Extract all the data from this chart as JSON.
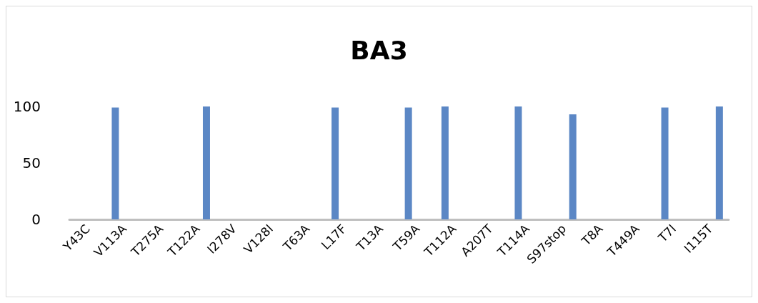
{
  "chart_data": {
    "type": "bar",
    "title": "BA3",
    "categories": [
      "Y43C",
      "V113A",
      "T275A",
      "T122A",
      "I278V",
      "V128I",
      "T63A",
      "L17F",
      "T13A",
      "T59A",
      "T112A",
      "A207T",
      "T114A",
      "S97stop",
      "T8A",
      "T449A",
      "T7I",
      "I115T"
    ],
    "series": [
      {
        "color": "#5b87c5",
        "values": [
          null,
          99,
          null,
          null,
          null,
          null,
          null,
          99,
          null,
          99,
          100,
          null,
          100,
          null,
          null,
          null,
          99,
          null
        ]
      },
      {
        "color": "#5b87c5",
        "values": [
          null,
          null,
          null,
          100,
          null,
          null,
          null,
          null,
          null,
          null,
          null,
          null,
          null,
          93,
          null,
          null,
          null,
          100
        ]
      }
    ],
    "ylim": [
      0,
      100
    ],
    "yticks": [
      0,
      50,
      100
    ],
    "grid": false
  }
}
